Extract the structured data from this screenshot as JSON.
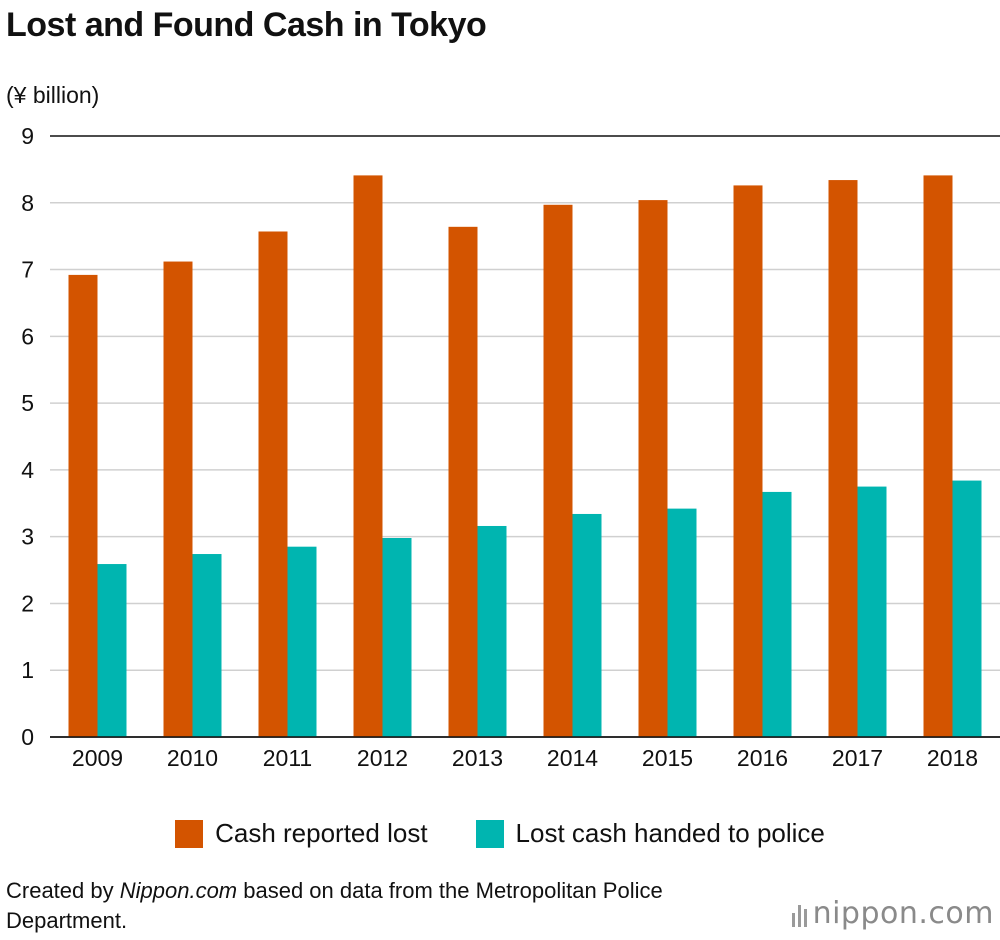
{
  "header": {
    "title": "Lost and Found Cash in Tokyo",
    "unit_label": "(¥ billion)"
  },
  "footer": {
    "source_prefix": "Created by ",
    "source_site": "Nippon.com",
    "source_suffix": " based on data from the Metropolitan Police Department.",
    "logo_text": "nippon.com"
  },
  "colors": {
    "lost": "#d35400",
    "handed": "#00b5b0",
    "grid": "#d0d0d0",
    "axis": "#111111"
  },
  "chart_data": {
    "type": "bar",
    "title": "Lost and Found Cash in Tokyo",
    "ylabel": "(¥ billion)",
    "xlabel": "",
    "ylim": [
      0,
      9
    ],
    "yticks": [
      0,
      1,
      2,
      3,
      4,
      5,
      6,
      7,
      8,
      9
    ],
    "grid": true,
    "legend_position": "bottom",
    "categories": [
      "2009",
      "2010",
      "2011",
      "2012",
      "2013",
      "2014",
      "2015",
      "2016",
      "2017",
      "2018"
    ],
    "series": [
      {
        "name": "Cash reported lost",
        "color": "#d35400",
        "values": [
          6.92,
          7.12,
          7.57,
          8.41,
          7.64,
          7.97,
          8.04,
          8.26,
          8.34,
          8.41
        ]
      },
      {
        "name": "Lost cash handed to police",
        "color": "#00b5b0",
        "values": [
          2.59,
          2.74,
          2.85,
          2.98,
          3.16,
          3.34,
          3.42,
          3.67,
          3.75,
          3.84
        ]
      }
    ]
  }
}
